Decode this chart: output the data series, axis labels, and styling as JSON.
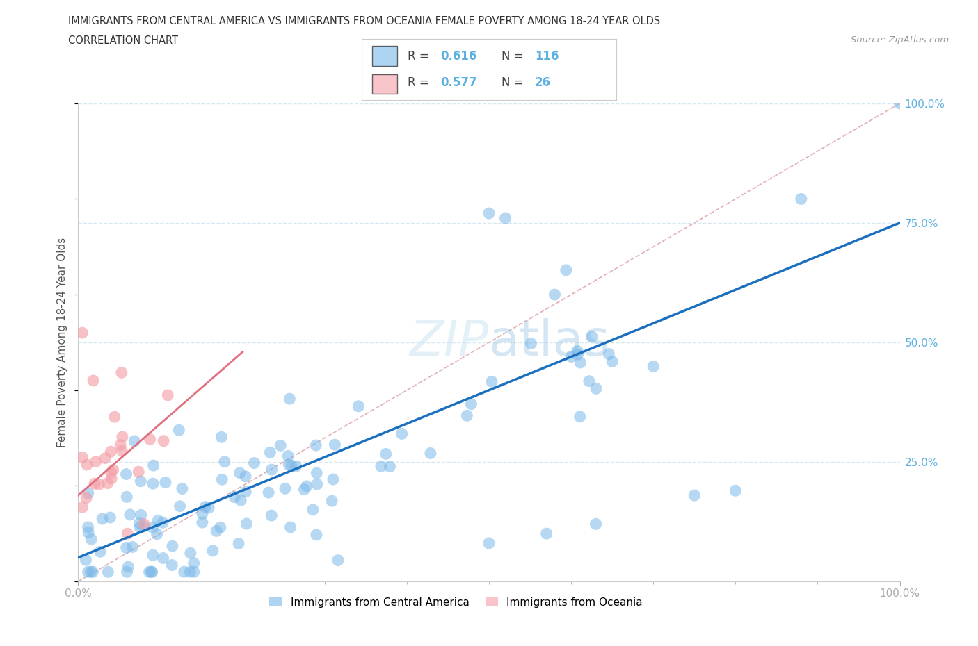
{
  "title_line1": "IMMIGRANTS FROM CENTRAL AMERICA VS IMMIGRANTS FROM OCEANIA FEMALE POVERTY AMONG 18-24 YEAR OLDS",
  "title_line2": "CORRELATION CHART",
  "source": "Source: ZipAtlas.com",
  "ylabel": "Female Poverty Among 18-24 Year Olds",
  "xlim": [
    0.0,
    1.0
  ],
  "ylim": [
    0.0,
    1.0
  ],
  "r_blue": 0.616,
  "n_blue": 116,
  "r_pink": 0.577,
  "n_pink": 26,
  "blue_color": "#7ab8e8",
  "pink_color": "#f4a0a8",
  "blue_line_color": "#1a6fbf",
  "pink_line_color": "#e07080",
  "diagonal_color": "#e0b0b8",
  "grid_color": "#d8e8f0",
  "right_tick_color": "#5ab0e0",
  "legend_label_blue": "Immigrants from Central America",
  "legend_label_pink": "Immigrants from Oceania",
  "blue_line_y0": 0.05,
  "blue_line_y1": 0.75,
  "pink_line_x0": 0.0,
  "pink_line_x1": 0.2,
  "pink_line_y0": 0.18,
  "pink_line_y1": 0.48
}
